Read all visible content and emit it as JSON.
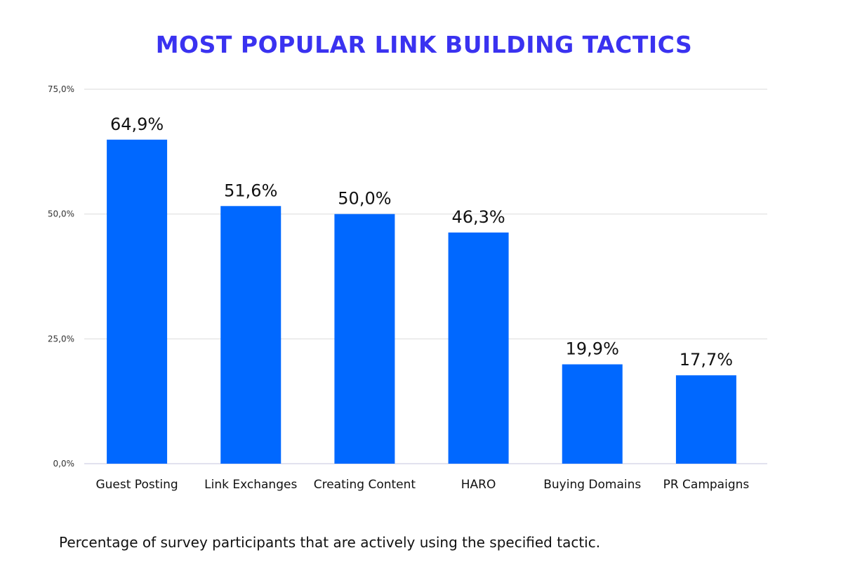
{
  "chart_data": {
    "type": "bar",
    "title": "MOST POPULAR LINK BUILDING TACTICS",
    "caption": "Percentage of survey participants that are actively using the specified tactic.",
    "categories": [
      "Guest Posting",
      "Link Exchanges",
      "Creating Content",
      "HARO",
      "Buying Domains",
      "PR Campaigns"
    ],
    "values": [
      64.9,
      51.6,
      50.0,
      46.3,
      19.9,
      17.7
    ],
    "data_labels": [
      "64,9%",
      "51,6%",
      "50,0%",
      "46,3%",
      "19,9%",
      "17,7%"
    ],
    "ylim": [
      0,
      75
    ],
    "yticks": [
      0,
      25,
      50,
      75
    ],
    "ytick_labels": [
      "0,0%",
      "25,0%",
      "50,0%",
      "75,0%"
    ],
    "grid": true,
    "legend": "none",
    "colors": {
      "bar": "#0068ff",
      "title": "#3a32f0",
      "grid": "#e6e6e6"
    }
  }
}
